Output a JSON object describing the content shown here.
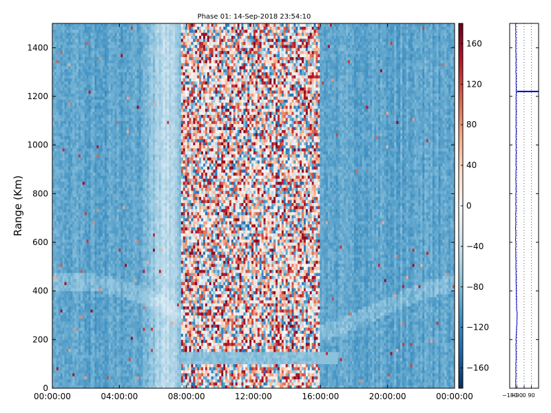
{
  "chart_data": {
    "type": "heatmap",
    "title": "Phase 01: 14-Sep-2018 23:54:10",
    "ylabel": "Range (Km)",
    "xlabel": "",
    "x_tick_labels": [
      "00:00:00",
      "04:00:00",
      "08:00:00",
      "12:00:00",
      "16:00:00",
      "20:00:00",
      "00:00:00"
    ],
    "x_range_hours": [
      0,
      24
    ],
    "y_ticks": [
      0,
      200,
      400,
      600,
      800,
      1000,
      1200,
      1400
    ],
    "ylim": [
      0,
      1500
    ],
    "colorbar": {
      "colormap": "RdBu_r",
      "vmin": -180,
      "vmax": 180,
      "ticks": [
        -160,
        -120,
        -80,
        -40,
        0,
        40,
        80,
        120,
        160
      ],
      "tick_labels": [
        "−160",
        "−120",
        "−80",
        "−40",
        "0",
        "40",
        "80",
        "120",
        "160"
      ]
    },
    "field_description": "Phase values vs. time of day (x) and range (y); mostly around -90 outside 07:40-16:00, noisy mixed values inside that window, with a light band near 100-150 km between 07:40 and 17:00 and faint curved structures near 300-600 km.",
    "side_profile": {
      "type": "line",
      "x_ticks": [
        -180,
        -90,
        0,
        90
      ],
      "x_tick_labels": [
        "−180",
        "−90",
        "0",
        "90"
      ],
      "xlim": [
        -180,
        180
      ],
      "grid": "dotted vertical",
      "line_color": "#0000cc",
      "mean_profile": [
        {
          "range": 0,
          "value": -105
        },
        {
          "range": 200,
          "value": -100
        },
        {
          "range": 300,
          "value": -85
        },
        {
          "range": 330,
          "value": -95
        },
        {
          "range": 600,
          "value": -105
        },
        {
          "range": 1000,
          "value": -100
        },
        {
          "range": 1215,
          "value": -100
        },
        {
          "range": 1500,
          "value": -105
        }
      ],
      "marker_range": 1220
    }
  }
}
